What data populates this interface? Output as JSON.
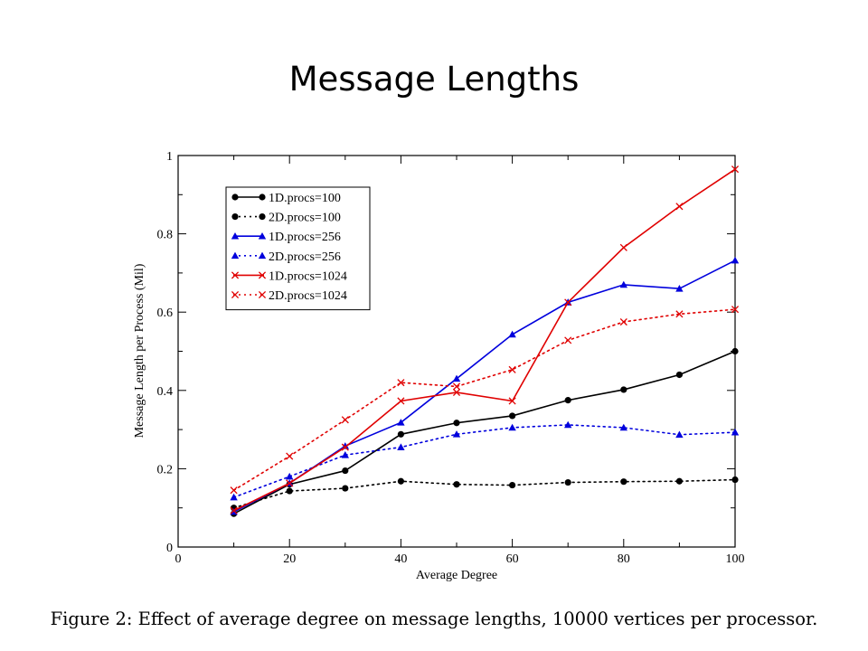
{
  "slide": {
    "title": "Message Lengths"
  },
  "caption": "Figure 2: Effect of average degree on message lengths, 10000 vertices per processor.",
  "chart_data": {
    "type": "line",
    "title": "",
    "xlabel": "Average Degree",
    "ylabel": "Message Length per Process (Mil)",
    "xlim": [
      0,
      100
    ],
    "ylim": [
      0,
      1
    ],
    "xticks": [
      0,
      20,
      40,
      60,
      80,
      100
    ],
    "yticks": [
      0,
      0.2,
      0.4,
      0.6,
      0.8,
      1
    ],
    "ytick_labels": [
      "0",
      "0.2",
      "0.4",
      "0.6",
      "0.8",
      "1"
    ],
    "grid": false,
    "legend_position": "top-left",
    "x": [
      10,
      20,
      30,
      40,
      50,
      60,
      70,
      80,
      90,
      100
    ],
    "series": [
      {
        "name": "1D.procs=100",
        "color": "#000000",
        "dash": "solid",
        "marker": "circle",
        "values": [
          0.085,
          0.16,
          0.195,
          0.288,
          0.317,
          0.335,
          0.375,
          0.402,
          0.44,
          0.5
        ]
      },
      {
        "name": "2D.procs=100",
        "color": "#000000",
        "dash": "dotted",
        "marker": "circle",
        "values": [
          0.1,
          0.143,
          0.15,
          0.168,
          0.16,
          0.158,
          0.165,
          0.167,
          0.168,
          0.172
        ]
      },
      {
        "name": "1D.procs=256",
        "color": "#0000dd",
        "dash": "solid",
        "marker": "triangle",
        "values": [
          0.09,
          0.163,
          0.258,
          0.318,
          0.43,
          0.543,
          0.625,
          0.67,
          0.66,
          0.732
        ]
      },
      {
        "name": "2D.procs=256",
        "color": "#0000dd",
        "dash": "dotted",
        "marker": "triangle",
        "values": [
          0.127,
          0.18,
          0.235,
          0.255,
          0.288,
          0.305,
          0.312,
          0.305,
          0.287,
          0.293
        ]
      },
      {
        "name": "1D.procs=1024",
        "color": "#e00000",
        "dash": "solid",
        "marker": "x",
        "values": [
          0.093,
          0.163,
          0.255,
          0.373,
          0.395,
          0.373,
          0.625,
          0.765,
          0.87,
          0.965
        ]
      },
      {
        "name": "2D.procs=1024",
        "color": "#e00000",
        "dash": "dotted",
        "marker": "x",
        "values": [
          0.145,
          0.232,
          0.325,
          0.42,
          0.41,
          0.453,
          0.528,
          0.575,
          0.595,
          0.607
        ]
      }
    ]
  }
}
